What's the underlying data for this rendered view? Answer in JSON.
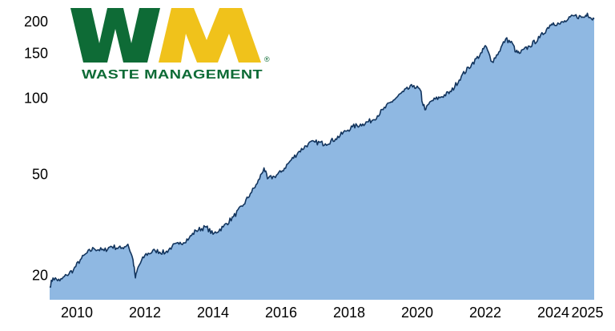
{
  "logo": {
    "mark": "WM",
    "wordmark": "WASTE MANAGEMENT",
    "registered": "®",
    "colors": {
      "green": "#0e6b36",
      "yellow": "#f0c21b"
    }
  },
  "chart_data": {
    "type": "area",
    "title": "",
    "xlabel": "",
    "ylabel": "",
    "y_scale": "log",
    "grid": false,
    "legend": "none",
    "fill_color": "#8fb8e2",
    "line_color": "#13355e",
    "xlim": [
      2009.2,
      2025.2
    ],
    "ylim": [
      16,
      220
    ],
    "x_ticks": [
      2010,
      2012,
      2014,
      2016,
      2018,
      2020,
      2022,
      2024,
      2025
    ],
    "x_tick_labels": [
      "2010",
      "2012",
      "2014",
      "2016",
      "2018",
      "2020",
      "2022",
      "2024",
      "2025"
    ],
    "y_ticks": [
      20,
      50,
      100,
      150,
      200
    ],
    "y_tick_labels": [
      "20",
      "50",
      "100",
      "150",
      "200"
    ],
    "series": [
      {
        "x": [
          2009.2,
          2009.3,
          2009.5,
          2009.7,
          2009.9,
          2010.1,
          2010.3,
          2010.5,
          2010.8,
          2011.0,
          2011.3,
          2011.5,
          2011.65,
          2011.72,
          2011.8,
          2012.0,
          2012.3,
          2012.6,
          2012.8,
          2013.0,
          2013.3,
          2013.5,
          2013.8,
          2014.0,
          2014.3,
          2014.6,
          2014.9,
          2015.1,
          2015.3,
          2015.5,
          2015.6,
          2015.8,
          2016.0,
          2016.2,
          2016.5,
          2016.8,
          2017.0,
          2017.3,
          2017.6,
          2017.9,
          2018.1,
          2018.4,
          2018.7,
          2019.0,
          2019.3,
          2019.6,
          2019.9,
          2020.1,
          2020.15,
          2020.25,
          2020.4,
          2020.7,
          2021.0,
          2021.3,
          2021.6,
          2021.9,
          2022.0,
          2022.2,
          2022.4,
          2022.6,
          2022.8,
          2022.9,
          2023.0,
          2023.3,
          2023.6,
          2023.9,
          2024.0,
          2024.2,
          2024.4,
          2024.6,
          2024.9,
          2025.0,
          2025.1,
          2025.2
        ],
        "y": [
          18,
          19.5,
          19,
          20,
          21,
          23,
          24.5,
          25.5,
          25,
          26,
          25.5,
          26.5,
          23,
          19.5,
          21.5,
          24,
          25,
          24.5,
          26,
          26.5,
          28,
          30,
          31,
          29,
          31,
          34,
          38,
          42,
          46,
          53,
          48,
          49,
          51,
          55,
          61,
          66,
          67,
          66,
          69,
          74,
          77,
          79,
          82,
          90,
          98,
          106,
          112,
          107,
          96,
          90,
          97,
          101,
          106,
          122,
          136,
          151,
          161,
          139,
          152,
          171,
          164,
          152,
          150,
          160,
          173,
          194,
          198,
          196,
          202,
          211,
          208,
          216,
          207,
          205
        ]
      }
    ]
  }
}
